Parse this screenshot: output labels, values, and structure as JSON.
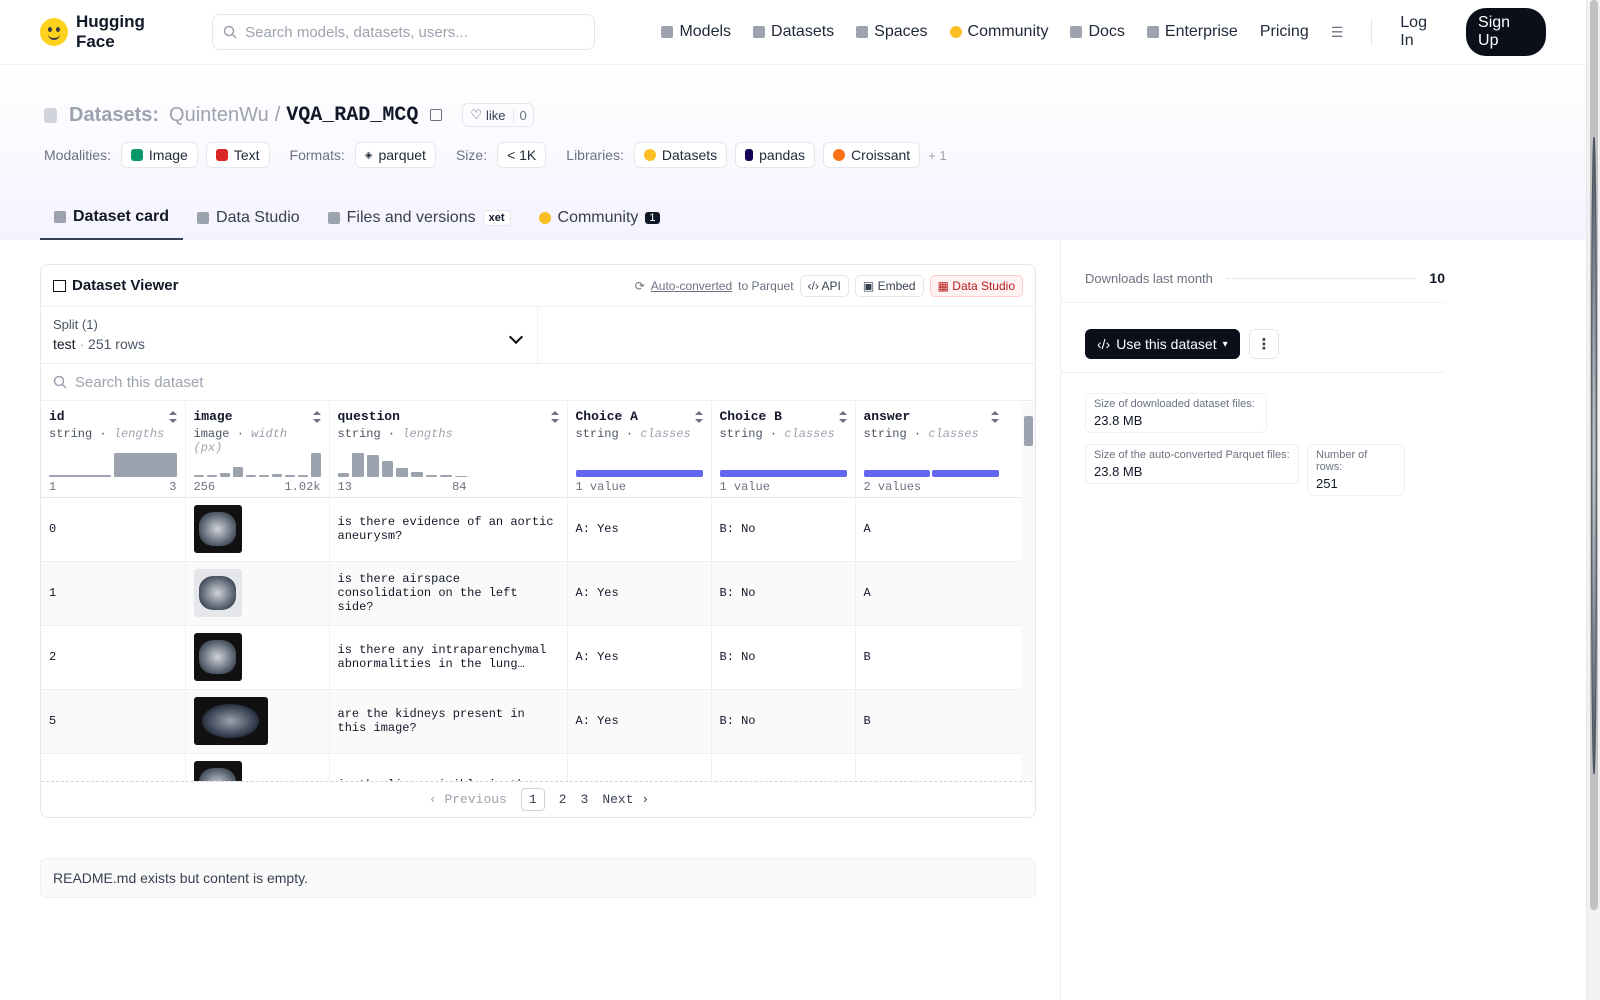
{
  "header": {
    "brand": "Hugging Face",
    "search_placeholder": "Search models, datasets, users...",
    "nav": [
      "Models",
      "Datasets",
      "Spaces",
      "Community",
      "Docs",
      "Enterprise",
      "Pricing"
    ],
    "login": "Log In",
    "signup": "Sign Up"
  },
  "repo": {
    "section": "Datasets:",
    "owner": "QuintenWu",
    "sep": "/",
    "name": "VQA_RAD_MCQ",
    "like_label": "like",
    "like_count": "0",
    "modalities_label": "Modalities:",
    "modalities": [
      "Image",
      "Text"
    ],
    "formats_label": "Formats:",
    "format": "parquet",
    "size_label": "Size:",
    "size": "< 1K",
    "libraries_label": "Libraries:",
    "libraries": [
      "Datasets",
      "pandas",
      "Croissant"
    ],
    "libraries_more": "+ 1"
  },
  "tabs": {
    "card": "Dataset card",
    "studio": "Data Studio",
    "files": "Files and versions",
    "xet": "xet",
    "community": "Community",
    "community_count": "1"
  },
  "viewer": {
    "title": "Dataset Viewer",
    "auto_converted": "Auto-converted",
    "to_parquet": "to Parquet",
    "api": "API",
    "embed": "Embed",
    "studio": "Data Studio",
    "split_label": "Split (1)",
    "split_name": "test",
    "split_rows": "251 rows",
    "search_placeholder": "Search this dataset",
    "columns": [
      {
        "name": "id",
        "type": "string",
        "stat": "lengths",
        "min": "1",
        "max": "3"
      },
      {
        "name": "image",
        "type": "image",
        "stat": "width (px)",
        "min": "256",
        "max": "1.02k"
      },
      {
        "name": "question",
        "type": "string",
        "stat": "lengths",
        "min": "13",
        "max": "84"
      },
      {
        "name": "Choice A",
        "type": "string",
        "stat": "classes",
        "min": "1 value",
        "max": ""
      },
      {
        "name": "Choice B",
        "type": "string",
        "stat": "classes",
        "min": "1 value",
        "max": ""
      },
      {
        "name": "answer",
        "type": "string",
        "stat": "classes",
        "min": "2 values",
        "max": ""
      }
    ],
    "rows": [
      {
        "id": "0",
        "question": "is there evidence of an aortic aneurysm?",
        "a": "A: Yes",
        "b": "B: No",
        "answer": "A"
      },
      {
        "id": "1",
        "question": "is there airspace consolidation on the left side?",
        "a": "A: Yes",
        "b": "B: No",
        "answer": "A"
      },
      {
        "id": "2",
        "question": "is there any intraparenchymal abnormalities in the lung…",
        "a": "A: Yes",
        "b": "B: No",
        "answer": "B"
      },
      {
        "id": "5",
        "question": "are the kidneys present in this image?",
        "a": "A: Yes",
        "b": "B: No",
        "answer": "B"
      },
      {
        "id": "",
        "question": "is the liver visible in the",
        "a": "",
        "b": "",
        "answer": ""
      }
    ],
    "pager": {
      "prev": "Previous",
      "pages": [
        "1",
        "2",
        "3"
      ],
      "next": "Next"
    }
  },
  "readme": "README.md exists but content is empty.",
  "sidebar": {
    "downloads_label": "Downloads last month",
    "downloads": "10",
    "use_button": "Use this dataset",
    "dl_size_label": "Size of downloaded dataset files:",
    "dl_size": "23.8 MB",
    "parquet_size_label": "Size of the auto-converted Parquet files:",
    "parquet_size": "23.8 MB",
    "rows_label": "Number of rows:",
    "rows": "251"
  }
}
